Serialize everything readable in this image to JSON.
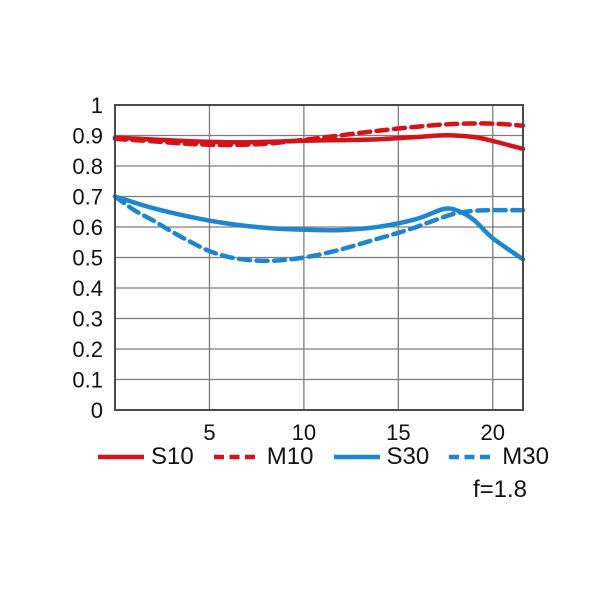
{
  "chart_data": {
    "type": "line",
    "title": "",
    "xlabel": "",
    "ylabel": "",
    "xlim": [
      0,
      21.6
    ],
    "ylim": [
      0,
      1
    ],
    "x_ticks": [
      5,
      10,
      15,
      20
    ],
    "y_ticks": [
      0,
      0.1,
      0.2,
      0.3,
      0.4,
      0.5,
      0.6,
      0.7,
      0.8,
      0.9,
      1
    ],
    "grid": true,
    "legend_position": "bottom",
    "annotation": "f=1.8",
    "colors": {
      "red": "#d5121a",
      "blue": "#1d86cf",
      "grid": "#7d7d7d",
      "border": "#4b4b4b",
      "text": "#111111"
    },
    "series": [
      {
        "name": "S10",
        "color": "#d5121a",
        "style": "solid",
        "points": [
          [
            0,
            0.893
          ],
          [
            2,
            0.887
          ],
          [
            4,
            0.881
          ],
          [
            6,
            0.878
          ],
          [
            8,
            0.879
          ],
          [
            10,
            0.883
          ],
          [
            12,
            0.885
          ],
          [
            14,
            0.888
          ],
          [
            16,
            0.895
          ],
          [
            17.5,
            0.901
          ],
          [
            19,
            0.895
          ],
          [
            20,
            0.882
          ],
          [
            21.6,
            0.856
          ]
        ]
      },
      {
        "name": "M10",
        "color": "#d5121a",
        "style": "dashed",
        "points": [
          [
            0,
            0.889
          ],
          [
            2,
            0.881
          ],
          [
            4,
            0.872
          ],
          [
            6,
            0.869
          ],
          [
            8,
            0.873
          ],
          [
            10,
            0.886
          ],
          [
            12,
            0.901
          ],
          [
            14,
            0.916
          ],
          [
            16,
            0.929
          ],
          [
            18,
            0.938
          ],
          [
            20,
            0.939
          ],
          [
            21.6,
            0.932
          ]
        ]
      },
      {
        "name": "S30",
        "color": "#1d86cf",
        "style": "solid",
        "points": [
          [
            0,
            0.7
          ],
          [
            2,
            0.662
          ],
          [
            4,
            0.633
          ],
          [
            6,
            0.611
          ],
          [
            8,
            0.597
          ],
          [
            10,
            0.591
          ],
          [
            12,
            0.59
          ],
          [
            14,
            0.601
          ],
          [
            16,
            0.627
          ],
          [
            17.4,
            0.659
          ],
          [
            18.2,
            0.652
          ],
          [
            19,
            0.623
          ],
          [
            20,
            0.563
          ],
          [
            21.6,
            0.494
          ]
        ]
      },
      {
        "name": "M30",
        "color": "#1d86cf",
        "style": "dashed",
        "points": [
          [
            0,
            0.7
          ],
          [
            1,
            0.656
          ],
          [
            2,
            0.622
          ],
          [
            3,
            0.585
          ],
          [
            4,
            0.551
          ],
          [
            5,
            0.521
          ],
          [
            6,
            0.502
          ],
          [
            7,
            0.492
          ],
          [
            8,
            0.489
          ],
          [
            9,
            0.492
          ],
          [
            10,
            0.5
          ],
          [
            11,
            0.512
          ],
          [
            12,
            0.527
          ],
          [
            13,
            0.545
          ],
          [
            14,
            0.563
          ],
          [
            15,
            0.581
          ],
          [
            16,
            0.601
          ],
          [
            17,
            0.624
          ],
          [
            18,
            0.644
          ],
          [
            19,
            0.653
          ],
          [
            20,
            0.655
          ],
          [
            21.6,
            0.655
          ]
        ]
      }
    ]
  }
}
